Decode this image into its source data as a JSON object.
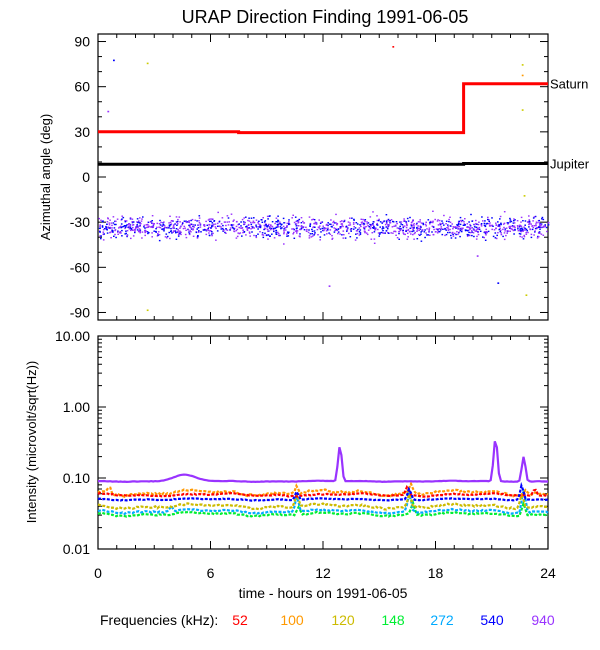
{
  "title": "URAP Direction Finding  1991-06-05",
  "chart_data": [
    {
      "type": "scatter",
      "panel": "azimuth",
      "ylabel": "Azimuthal angle (deg)",
      "xlim": [
        0,
        24
      ],
      "ylim": [
        -95,
        95
      ],
      "yticks": [
        90,
        60,
        30,
        0,
        -30,
        -60,
        -90
      ],
      "ytick_labels": [
        "90",
        "60",
        "30",
        "0",
        "-30",
        "-60",
        "-90"
      ],
      "reference_lines": [
        {
          "name": "Saturn",
          "label": "Saturn",
          "color": "#ff0000",
          "points": [
            [
              0,
              30
            ],
            [
              7.5,
              30
            ],
            [
              7.5,
              29.5
            ],
            [
              19.5,
              29.5
            ],
            [
              19.5,
              62
            ],
            [
              24,
              62
            ]
          ]
        },
        {
          "name": "Jupiter",
          "label": "Jupiter",
          "color": "#000000",
          "points": [
            [
              0,
              8.5
            ],
            [
              19.5,
              8.5
            ],
            [
              19.5,
              9
            ],
            [
              24,
              9
            ]
          ]
        }
      ],
      "scatter_band": {
        "center_deg": -33,
        "spread_deg": 9,
        "n_points": 1500,
        "colors": [
          "#9933ff",
          "#0000ff"
        ]
      },
      "outliers": [
        {
          "x": 0.8,
          "y": 78,
          "color": "#0000ff"
        },
        {
          "x": 2.6,
          "y": 76,
          "color": "#cccc00"
        },
        {
          "x": 15.7,
          "y": 87,
          "color": "#ff0000"
        },
        {
          "x": 12.3,
          "y": -72,
          "color": "#9933ff"
        },
        {
          "x": 21.3,
          "y": -70,
          "color": "#0000ff"
        },
        {
          "x": 2.6,
          "y": -88,
          "color": "#cccc00"
        },
        {
          "x": 22.6,
          "y": 75,
          "color": "#cccc00"
        },
        {
          "x": 22.6,
          "y": 68,
          "color": "#ff9900"
        },
        {
          "x": 22.6,
          "y": 45,
          "color": "#cccc00"
        },
        {
          "x": 22.7,
          "y": -12,
          "color": "#cccc00"
        },
        {
          "x": 22.8,
          "y": -78,
          "color": "#cccc00"
        },
        {
          "x": 20.2,
          "y": -52,
          "color": "#9933ff"
        },
        {
          "x": 0.5,
          "y": 44,
          "color": "#9933ff"
        }
      ]
    },
    {
      "type": "line",
      "panel": "intensity",
      "ylabel": "Intensity (microvolt/sqrt(Hz))",
      "xlabel": "time - hours on 1991-06-05",
      "xlim": [
        0,
        24
      ],
      "xticks": [
        0,
        6,
        12,
        18,
        24
      ],
      "xtick_labels": [
        "0",
        "6",
        "12",
        "18",
        "24"
      ],
      "ylim": [
        0.01,
        10
      ],
      "yscale": "log",
      "yticks": [
        10,
        1,
        0.1,
        0.01
      ],
      "ytick_labels": [
        "10.00",
        "1.00",
        "0.10",
        "0.01"
      ],
      "series": [
        {
          "name": "52",
          "color": "#ff0000",
          "base": 0.058,
          "wobble": 0.06,
          "spikes": [
            [
              16.5,
              0.075
            ],
            [
              23.3,
              0.07
            ]
          ]
        },
        {
          "name": "100",
          "color": "#ff9900",
          "base": 0.062,
          "wobble": 0.12,
          "spikes": [
            [
              0.6,
              0.075
            ],
            [
              10.6,
              0.08
            ],
            [
              16.7,
              0.085
            ],
            [
              22.8,
              0.07
            ]
          ]
        },
        {
          "name": "120",
          "color": "#ccbb00",
          "base": 0.04,
          "wobble": 0.1,
          "spikes": [
            [
              10.6,
              0.06
            ],
            [
              16.6,
              0.06
            ],
            [
              22.6,
              0.06
            ]
          ]
        },
        {
          "name": "148",
          "color": "#00ee33",
          "base": 0.031,
          "wobble": 0.08,
          "spikes": [
            [
              10.7,
              0.04
            ],
            [
              16.8,
              0.045
            ],
            [
              22.7,
              0.045
            ]
          ]
        },
        {
          "name": "272",
          "color": "#00aaff",
          "base": 0.034,
          "wobble": 0.08,
          "spikes": [
            [
              3.9,
              0.04
            ],
            [
              10.6,
              0.055
            ],
            [
              16.6,
              0.06
            ],
            [
              22.7,
              0.07
            ]
          ]
        },
        {
          "name": "540",
          "color": "#0000ff",
          "base": 0.05,
          "wobble": 0.04,
          "spikes": [
            [
              10.6,
              0.065
            ],
            [
              16.6,
              0.07
            ],
            [
              22.6,
              0.08
            ]
          ]
        },
        {
          "name": "940",
          "color": "#9933ff",
          "base": 0.09,
          "wobble": 0.02,
          "bumps": [
            [
              4.6,
              0.11,
              0.8
            ]
          ],
          "spikes": [
            [
              12.9,
              0.28
            ],
            [
              21.2,
              0.35
            ],
            [
              22.7,
              0.2
            ]
          ]
        }
      ]
    }
  ],
  "legend": {
    "label": "Frequencies (kHz):",
    "items": [
      {
        "text": "52",
        "color": "#ff0000"
      },
      {
        "text": "100",
        "color": "#ff9900"
      },
      {
        "text": "120",
        "color": "#ccbb00"
      },
      {
        "text": "148",
        "color": "#00ee33"
      },
      {
        "text": "272",
        "color": "#00aaff"
      },
      {
        "text": "540",
        "color": "#0000ff"
      },
      {
        "text": "940",
        "color": "#9933ff"
      }
    ]
  }
}
